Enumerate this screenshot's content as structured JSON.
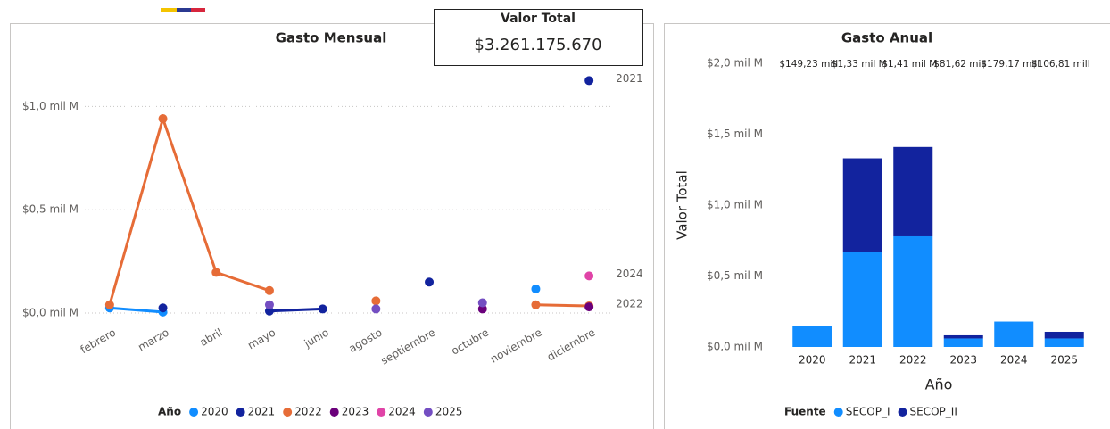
{
  "card": {
    "label": "Valor Total",
    "value": "$3.261.175.670"
  },
  "chart_data": [
    {
      "type": "line",
      "title": "Gasto Mensual",
      "categories": [
        "febrero",
        "marzo",
        "abril",
        "mayo",
        "junio",
        "agosto",
        "septiembre",
        "octubre",
        "noviembre",
        "diciembre"
      ],
      "series": [
        {
          "name": "2020",
          "color": "#118DFF",
          "values": [
            0.025,
            0.005,
            null,
            null,
            null,
            null,
            null,
            null,
            0.117,
            null
          ]
        },
        {
          "name": "2021",
          "color": "#12239E",
          "values": [
            null,
            0.025,
            null,
            0.01,
            0.02,
            null,
            0.15,
            null,
            null,
            1.125
          ]
        },
        {
          "name": "2022",
          "color": "#E66C37",
          "values": [
            0.04,
            0.941,
            0.197,
            0.109,
            null,
            0.059,
            null,
            null,
            0.04,
            0.035
          ]
        },
        {
          "name": "2023",
          "color": "#6B007B",
          "values": [
            null,
            null,
            null,
            null,
            null,
            null,
            null,
            0.02,
            null,
            0.03
          ]
        },
        {
          "name": "2024",
          "color": "#E044A7",
          "values": [
            null,
            null,
            null,
            null,
            null,
            null,
            null,
            null,
            null,
            0.18
          ]
        },
        {
          "name": "2025",
          "color": "#744EC2",
          "values": [
            null,
            null,
            null,
            0.04,
            null,
            0.02,
            null,
            0.05,
            null,
            null
          ]
        }
      ],
      "annotations": [
        "2021",
        "2024",
        "2022"
      ],
      "ylim": [
        -0.03,
        1.17
      ],
      "yticks": [
        {
          "value": 0,
          "label": "$0,0 mil M"
        },
        {
          "value": 0.5,
          "label": "$0,5 mil M"
        },
        {
          "value": 1.0,
          "label": "$1,0 mil M"
        }
      ],
      "grid": true,
      "legend_title": "Año",
      "legend": "bottom"
    },
    {
      "type": "stacked_bar",
      "title": "Gasto Anual",
      "categories": [
        "2020",
        "2021",
        "2022",
        "2023",
        "2024",
        "2025"
      ],
      "series": [
        {
          "name": "SECOP_I",
          "color": "#118DFF",
          "values": [
            0.149,
            0.669,
            0.78,
            0.06,
            0.179,
            0.06
          ]
        },
        {
          "name": "SECOP_II",
          "color": "#12239E",
          "values": [
            0,
            0.661,
            0.63,
            0.022,
            0,
            0.047
          ]
        }
      ],
      "total_labels": [
        "$149,23 mill",
        "$1,33 mil M",
        "$1,41 mil M",
        "$81,62 mill",
        "$179,17 mill",
        "$106,81 mill"
      ],
      "ylim": [
        0,
        2.0
      ],
      "yticks": [
        {
          "value": 0,
          "label": "$0,0 mil M"
        },
        {
          "value": 0.5,
          "label": "$0,5 mil M"
        },
        {
          "value": 1.0,
          "label": "$1,0 mil M"
        },
        {
          "value": 1.5,
          "label": "$1,5 mil M"
        },
        {
          "value": 2.0,
          "label": "$2,0 mil M"
        }
      ],
      "xlabel": "Año",
      "ylabel": "Valor Total",
      "grid": false,
      "legend_title": "Fuente",
      "legend": "bottom"
    }
  ]
}
